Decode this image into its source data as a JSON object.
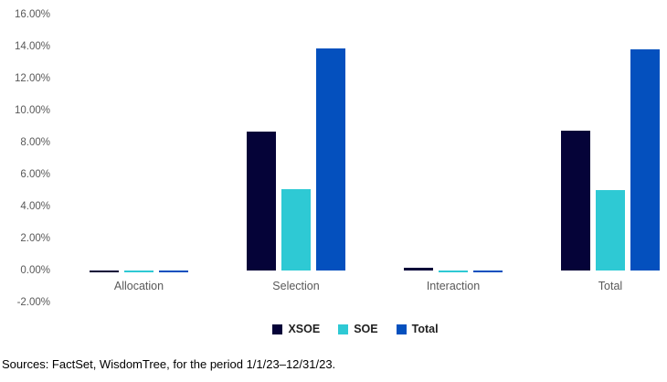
{
  "chart_data": {
    "type": "bar",
    "title": "",
    "categories": [
      "Allocation",
      "Selection",
      "Interaction",
      "Total"
    ],
    "series": [
      {
        "name": "XSOE",
        "color": "#050338",
        "values": [
          -0.04,
          8.7,
          0.15,
          8.75
        ]
      },
      {
        "name": "SOE",
        "color": "#2EC9D4",
        "values": [
          -0.06,
          5.1,
          -0.05,
          5.0
        ]
      },
      {
        "name": "Total",
        "color": "#0450BE",
        "values": [
          -0.1,
          13.9,
          -0.07,
          13.85
        ]
      }
    ],
    "xlabel": "",
    "ylabel": "",
    "ylim": [
      -2,
      16
    ],
    "ytick_step": 2,
    "ytick_labels": [
      "16.00%",
      "14.00%",
      "12.00%",
      "10.00%",
      "8.00%",
      "6.00%",
      "4.00%",
      "2.00%",
      "0.00%",
      "-2.00%"
    ],
    "grid": false,
    "legend_position": "bottom-center",
    "value_format": "percent"
  },
  "source_note": "Sources: FactSet, WisdomTree, for the period 1/1/23–12/31/23.",
  "colors": {
    "background": "#FFFFFF",
    "axis_text": "#595959",
    "legend_text": "#1F1F1F",
    "source_text": "#000000"
  }
}
